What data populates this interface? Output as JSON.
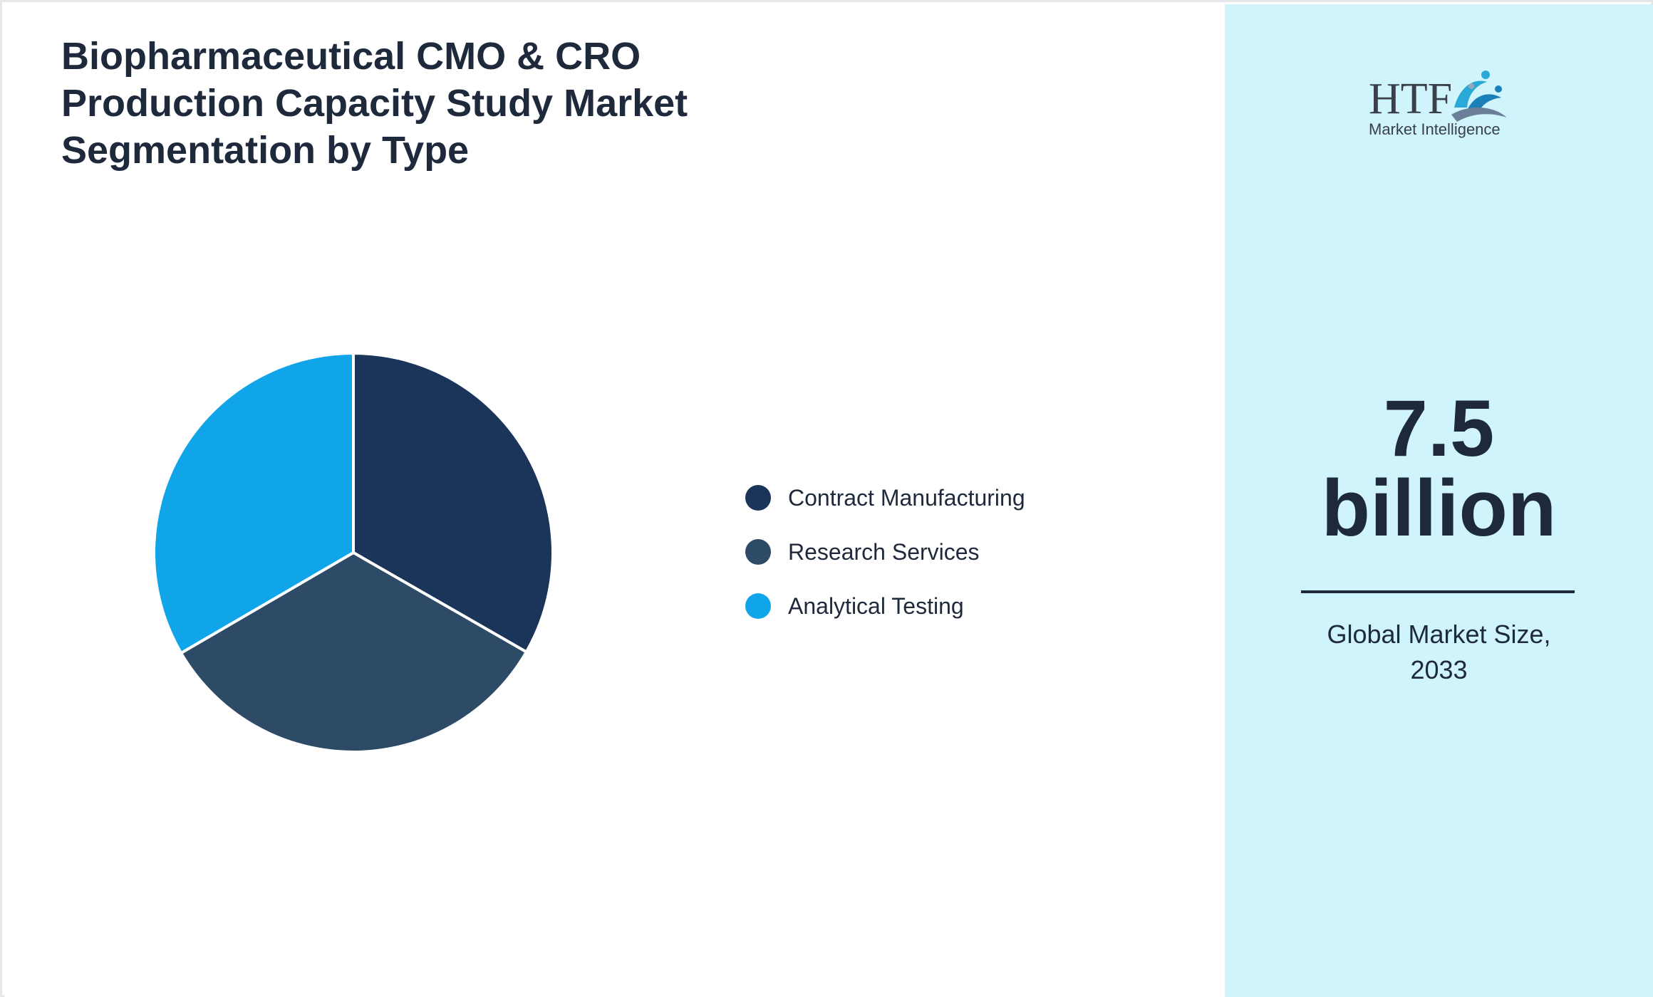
{
  "colors": {
    "contract_manufacturing": "#1b355a",
    "research_services": "#2d4a66",
    "analytical_testing": "#10a5e8",
    "sidebar_bg": "#cff4fc",
    "text": "#1e293b"
  },
  "chart_data": {
    "type": "pie",
    "title": "Biopharmaceutical CMO & CRO Production Capacity Study Market Segmentation by Type",
    "categories": [
      "Contract Manufacturing",
      "Research Services",
      "Analytical Testing"
    ],
    "values": [
      33.3,
      33.3,
      33.4
    ],
    "legend_placement": "right"
  },
  "sidebar": {
    "logo": {
      "letters": "HTF",
      "subtitle": "Market Intelligence",
      "icon": "htf-wave-figures-logo"
    },
    "value_line1": "7.5",
    "value_line2": "billion",
    "caption_line1": "Global Market Size,",
    "caption_line2": "2033"
  }
}
